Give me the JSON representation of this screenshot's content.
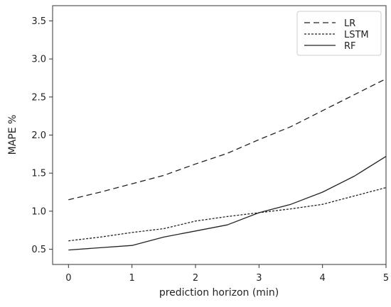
{
  "chart_data": {
    "type": "line",
    "title": "",
    "xlabel": "prediction horizon (min)",
    "ylabel": "MAPE %",
    "xlim": [
      -0.25,
      5.0
    ],
    "ylim": [
      0.3,
      3.7
    ],
    "x_ticks": [
      0,
      1,
      2,
      3,
      4,
      5
    ],
    "y_ticks": [
      0.5,
      1.0,
      1.5,
      2.0,
      2.5,
      3.0,
      3.5
    ],
    "x_tick_labels": [
      "0",
      "1",
      "2",
      "3",
      "4",
      "5"
    ],
    "y_tick_labels": [
      "0.5",
      "1.0",
      "1.5",
      "2.0",
      "2.5",
      "3.0",
      "3.5"
    ],
    "grid": false,
    "legend_position": "top-right",
    "series": [
      {
        "name": "LR",
        "style": "dashed",
        "color": "#222222",
        "x": [
          0,
          0.5,
          1,
          1.5,
          2,
          2.5,
          3,
          3.5,
          4,
          4.5,
          5
        ],
        "values": [
          1.15,
          1.25,
          1.36,
          1.47,
          1.62,
          1.76,
          1.94,
          2.11,
          2.32,
          2.53,
          2.74
        ]
      },
      {
        "name": "LSTM",
        "style": "dotted",
        "color": "#222222",
        "x": [
          0,
          0.5,
          1,
          1.5,
          2,
          2.5,
          3,
          3.5,
          4,
          4.5,
          5
        ],
        "values": [
          0.61,
          0.66,
          0.72,
          0.77,
          0.87,
          0.93,
          0.98,
          1.03,
          1.09,
          1.2,
          1.31
        ]
      },
      {
        "name": "RF",
        "style": "solid",
        "color": "#222222",
        "x": [
          0,
          0.5,
          1,
          1.5,
          2,
          2.5,
          3,
          3.5,
          4,
          4.5,
          5
        ],
        "values": [
          0.49,
          0.52,
          0.55,
          0.66,
          0.74,
          0.82,
          0.98,
          1.09,
          1.25,
          1.46,
          1.72
        ]
      }
    ]
  }
}
